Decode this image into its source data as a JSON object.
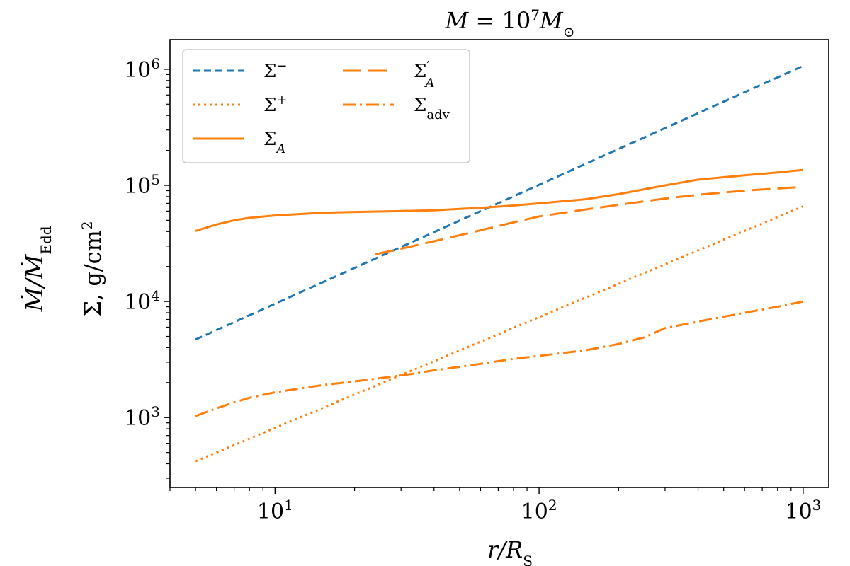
{
  "chart_data": {
    "type": "line",
    "title": "M = 10^7 M⊙",
    "title_parts": {
      "lhs": "M",
      "eq": " = ",
      "base": "10",
      "exp": "7",
      "unit": "M",
      "unit_sub": "⊙"
    },
    "xlabel": "r/R_S",
    "xlabel_parts": {
      "main": "r/R",
      "sub": "S"
    },
    "ylabel": "Σ, g/cm^2",
    "ylabel_parts": {
      "main": "Σ,  g/cm",
      "sup": "2"
    },
    "outer_ylabel": "Ṁ/Ṁ_Edd",
    "outer_ylabel_parts": {
      "main": "Ṁ/Ṁ",
      "sub": "Edd"
    },
    "xscale": "log",
    "yscale": "log",
    "xlim": [
      4.0,
      1250
    ],
    "ylim": [
      250,
      1800000
    ],
    "xticks": [
      {
        "value": 10,
        "base": "10",
        "exp": "1"
      },
      {
        "value": 100,
        "base": "10",
        "exp": "2"
      },
      {
        "value": 1000,
        "base": "10",
        "exp": "3"
      }
    ],
    "yticks": [
      {
        "value": 1000,
        "base": "10",
        "exp": "3"
      },
      {
        "value": 10000,
        "base": "10",
        "exp": "4"
      },
      {
        "value": 100000,
        "base": "10",
        "exp": "5"
      },
      {
        "value": 1000000,
        "base": "10",
        "exp": "6"
      }
    ],
    "legend_position": "top-left",
    "series": [
      {
        "name": "Σ⁻",
        "label_main": "Σ",
        "label_sup": "−",
        "label_sub": "",
        "color": "#1f77b4",
        "dash": "10 6",
        "x": [
          5,
          1000
        ],
        "y": [
          4700,
          1070000
        ]
      },
      {
        "name": "Σ⁺",
        "label_main": "Σ",
        "label_sup": "+",
        "label_sub": "",
        "color": "#ff7f0e",
        "dash": "3 5",
        "x": [
          5,
          1000
        ],
        "y": [
          420,
          66000
        ]
      },
      {
        "name": "Σ_A",
        "label_main": "Σ",
        "label_sup": "",
        "label_sub": "A",
        "color": "#ff7f0e",
        "dash": "",
        "x": [
          5,
          6,
          7,
          8,
          10,
          15,
          20,
          30,
          40,
          60,
          80,
          100,
          150,
          200,
          300,
          400,
          600,
          800,
          1000
        ],
        "y": [
          40500,
          46000,
          50000,
          52500,
          55000,
          58000,
          59000,
          60000,
          61000,
          64000,
          67000,
          70000,
          76000,
          84000,
          100000,
          112000,
          122000,
          129000,
          136000
        ]
      },
      {
        "name": "Σ'_A",
        "label_main": "Σ",
        "label_sup": "′",
        "label_sub": "A",
        "color": "#ff7f0e",
        "dash": "26 10",
        "x": [
          24,
          30,
          40,
          60,
          80,
          100,
          150,
          200,
          300,
          400,
          600,
          800,
          1000
        ],
        "y": [
          25500,
          28500,
          33000,
          41000,
          48000,
          54000,
          62000,
          68000,
          77000,
          83000,
          90000,
          94000,
          97000
        ]
      },
      {
        "name": "Σ_adv",
        "label_main": "Σ",
        "label_sup": "",
        "label_sub": "adv",
        "color": "#ff7f0e",
        "dash": "18 6 3 6",
        "x": [
          5,
          6,
          7,
          8,
          10,
          15,
          20,
          30,
          40,
          60,
          80,
          100,
          150,
          200,
          250,
          300,
          400,
          600,
          800,
          1000
        ],
        "y": [
          1030,
          1200,
          1350,
          1480,
          1650,
          1900,
          2050,
          2300,
          2550,
          2900,
          3200,
          3400,
          3800,
          4300,
          4900,
          5900,
          6700,
          8000,
          9000,
          10000
        ]
      }
    ]
  }
}
